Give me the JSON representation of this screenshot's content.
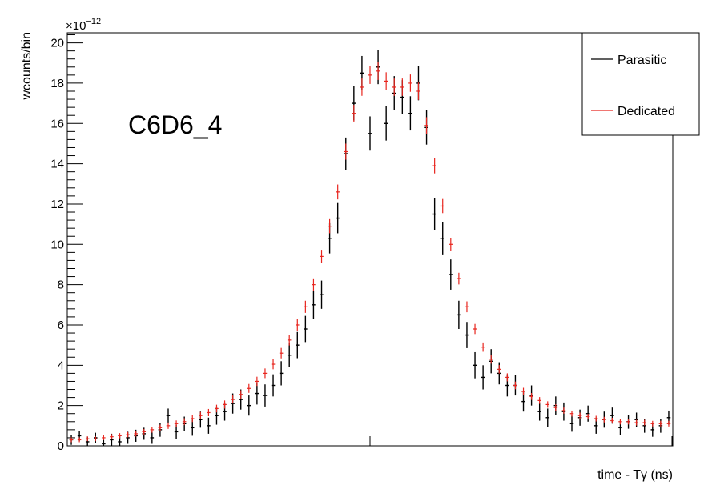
{
  "chart_data": {
    "type": "scatter",
    "style": "error-bars",
    "annotation": "C6D6_4",
    "xlabel": "time - Tγ (ns)",
    "ylabel": "wcounts/bin",
    "y_exponent_label": "×10",
    "y_exponent_power": "−12",
    "y_scale": 1e-12,
    "ylim": [
      0,
      20.5
    ],
    "xlim": [
      0,
      150
    ],
    "y_ticks": [
      0,
      2,
      4,
      6,
      8,
      10,
      12,
      14,
      16,
      18,
      20
    ],
    "y_tick_labels": [
      "0",
      "2",
      "4",
      "6",
      "8",
      "10",
      "12",
      "14",
      "16",
      "18",
      "20"
    ],
    "x_tick_labels": [],
    "grid": false,
    "legend": {
      "position": "top-right",
      "entries": [
        "Parasitic",
        "Dedicated"
      ]
    },
    "series": [
      {
        "name": "Parasitic",
        "color": "#000000",
        "x": [
          1,
          3,
          5,
          7,
          9,
          11,
          13,
          15,
          17,
          19,
          21,
          23,
          25,
          27,
          29,
          31,
          33,
          35,
          37,
          39,
          41,
          43,
          45,
          47,
          49,
          51,
          53,
          55,
          57,
          59,
          61,
          63,
          65,
          67,
          69,
          71,
          73,
          75,
          77,
          79,
          81,
          83,
          85,
          87,
          89,
          91,
          93,
          95,
          97,
          99,
          101,
          103,
          105,
          107,
          109,
          111,
          113,
          115,
          117,
          119,
          121,
          123,
          125,
          127,
          129,
          131,
          133,
          135,
          137,
          139,
          141,
          143,
          145,
          147,
          149
        ],
        "y": [
          0.3,
          0.5,
          0.2,
          0.4,
          0.1,
          0.3,
          0.2,
          0.4,
          0.5,
          0.6,
          0.4,
          0.8,
          1.5,
          0.7,
          1.1,
          0.9,
          1.3,
          1.0,
          1.5,
          1.7,
          2.1,
          2.3,
          2.0,
          2.6,
          2.5,
          3.0,
          3.6,
          4.5,
          5.0,
          5.8,
          7.0,
          7.5,
          10.3,
          11.3,
          14.5,
          17.0,
          18.5,
          15.5,
          18.8,
          16.0,
          17.5,
          17.3,
          16.5,
          18.0,
          15.8,
          11.5,
          10.3,
          8.5,
          6.5,
          5.5,
          4.0,
          3.4,
          4.2,
          3.6,
          3.0,
          3.0,
          2.2,
          2.5,
          1.7,
          1.4,
          2.0,
          1.7,
          1.1,
          1.4,
          1.6,
          1.0,
          1.3,
          1.5,
          0.9,
          1.2,
          1.3,
          1.0,
          0.8,
          1.0,
          1.4
        ],
        "y_err": [
          0.25,
          0.25,
          0.25,
          0.25,
          0.25,
          0.3,
          0.3,
          0.3,
          0.3,
          0.3,
          0.3,
          0.35,
          0.35,
          0.35,
          0.35,
          0.4,
          0.4,
          0.4,
          0.45,
          0.45,
          0.5,
          0.5,
          0.5,
          0.55,
          0.55,
          0.55,
          0.6,
          0.6,
          0.65,
          0.65,
          0.7,
          0.7,
          0.75,
          0.75,
          0.8,
          0.85,
          0.85,
          0.85,
          0.85,
          0.85,
          0.85,
          0.85,
          0.85,
          0.85,
          0.85,
          0.8,
          0.8,
          0.75,
          0.7,
          0.65,
          0.65,
          0.6,
          0.6,
          0.55,
          0.55,
          0.5,
          0.5,
          0.5,
          0.45,
          0.45,
          0.45,
          0.45,
          0.4,
          0.4,
          0.4,
          0.4,
          0.4,
          0.4,
          0.35,
          0.35,
          0.35,
          0.35,
          0.35,
          0.35,
          0.35
        ]
      },
      {
        "name": "Dedicated",
        "color": "#e8251e",
        "x": [
          1,
          3,
          5,
          7,
          9,
          11,
          13,
          15,
          17,
          19,
          21,
          23,
          25,
          27,
          29,
          31,
          33,
          35,
          37,
          39,
          41,
          43,
          45,
          47,
          49,
          51,
          53,
          55,
          57,
          59,
          61,
          63,
          65,
          67,
          69,
          71,
          73,
          75,
          77,
          79,
          81,
          83,
          85,
          87,
          89,
          91,
          93,
          95,
          97,
          99,
          101,
          103,
          105,
          107,
          109,
          111,
          113,
          115,
          117,
          119,
          121,
          123,
          125,
          127,
          129,
          131,
          133,
          135,
          137,
          139,
          141,
          143,
          145,
          147,
          149
        ],
        "y": [
          0.3,
          0.3,
          0.35,
          0.35,
          0.4,
          0.45,
          0.5,
          0.55,
          0.6,
          0.7,
          0.8,
          0.9,
          1.0,
          1.1,
          1.2,
          1.35,
          1.5,
          1.65,
          1.85,
          2.05,
          2.3,
          2.55,
          2.85,
          3.2,
          3.6,
          4.05,
          4.6,
          5.25,
          6.0,
          6.9,
          8.0,
          9.4,
          10.9,
          12.6,
          14.6,
          16.5,
          17.8,
          18.4,
          18.6,
          18.1,
          17.8,
          17.8,
          18.0,
          17.6,
          15.9,
          13.9,
          11.9,
          10.0,
          8.3,
          6.9,
          5.8,
          4.9,
          4.3,
          3.8,
          3.4,
          3.0,
          2.7,
          2.45,
          2.25,
          2.05,
          1.9,
          1.75,
          1.6,
          1.5,
          1.45,
          1.35,
          1.3,
          1.25,
          1.2,
          1.2,
          1.15,
          1.15,
          1.1,
          1.1,
          1.1
        ],
        "y_err": [
          0.12,
          0.12,
          0.12,
          0.12,
          0.12,
          0.13,
          0.13,
          0.13,
          0.14,
          0.14,
          0.15,
          0.15,
          0.16,
          0.16,
          0.17,
          0.17,
          0.18,
          0.18,
          0.19,
          0.2,
          0.2,
          0.21,
          0.22,
          0.23,
          0.24,
          0.25,
          0.26,
          0.27,
          0.28,
          0.3,
          0.31,
          0.33,
          0.35,
          0.37,
          0.4,
          0.42,
          0.43,
          0.44,
          0.44,
          0.44,
          0.43,
          0.43,
          0.43,
          0.43,
          0.41,
          0.38,
          0.35,
          0.32,
          0.29,
          0.27,
          0.25,
          0.23,
          0.22,
          0.21,
          0.2,
          0.19,
          0.18,
          0.17,
          0.17,
          0.16,
          0.16,
          0.15,
          0.15,
          0.15,
          0.14,
          0.14,
          0.14,
          0.14,
          0.14,
          0.14,
          0.14,
          0.14,
          0.14,
          0.14,
          0.14
        ]
      }
    ]
  }
}
